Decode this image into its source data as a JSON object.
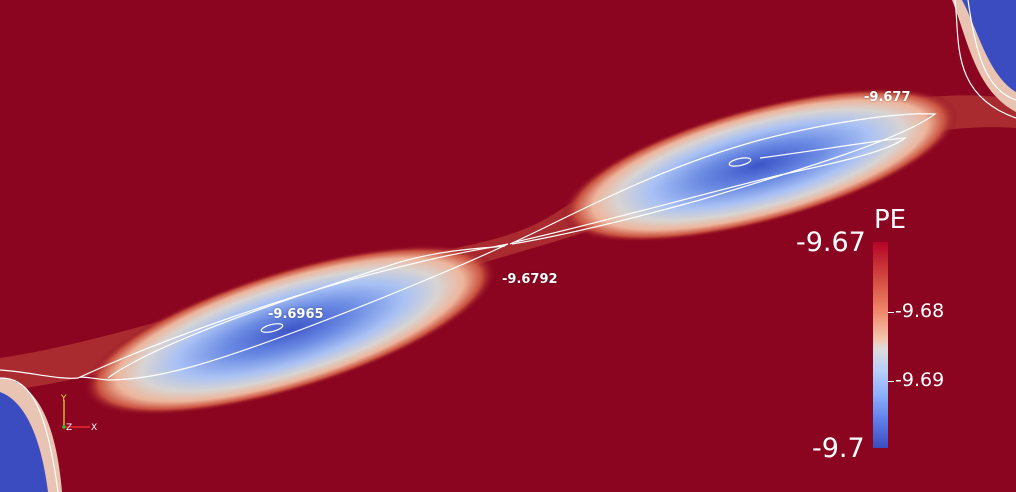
{
  "scalar_field": {
    "name": "PE",
    "colorbar": {
      "max_label": "-9.67",
      "min_label": "-9.7",
      "mid_labels": [
        "-9.68",
        "-9.69"
      ]
    },
    "contour_labels": [
      "-9.677",
      "-9.6792",
      "-9.6965"
    ]
  },
  "axes_gizmo": {
    "x_label": "X",
    "y_label": "Y",
    "z_label": "Z"
  },
  "colors": {
    "background": "#8b0520",
    "low": "#3b4cc0",
    "mid": "#dddcdc",
    "high": "#b40426",
    "contour_line": "#ffffff"
  }
}
